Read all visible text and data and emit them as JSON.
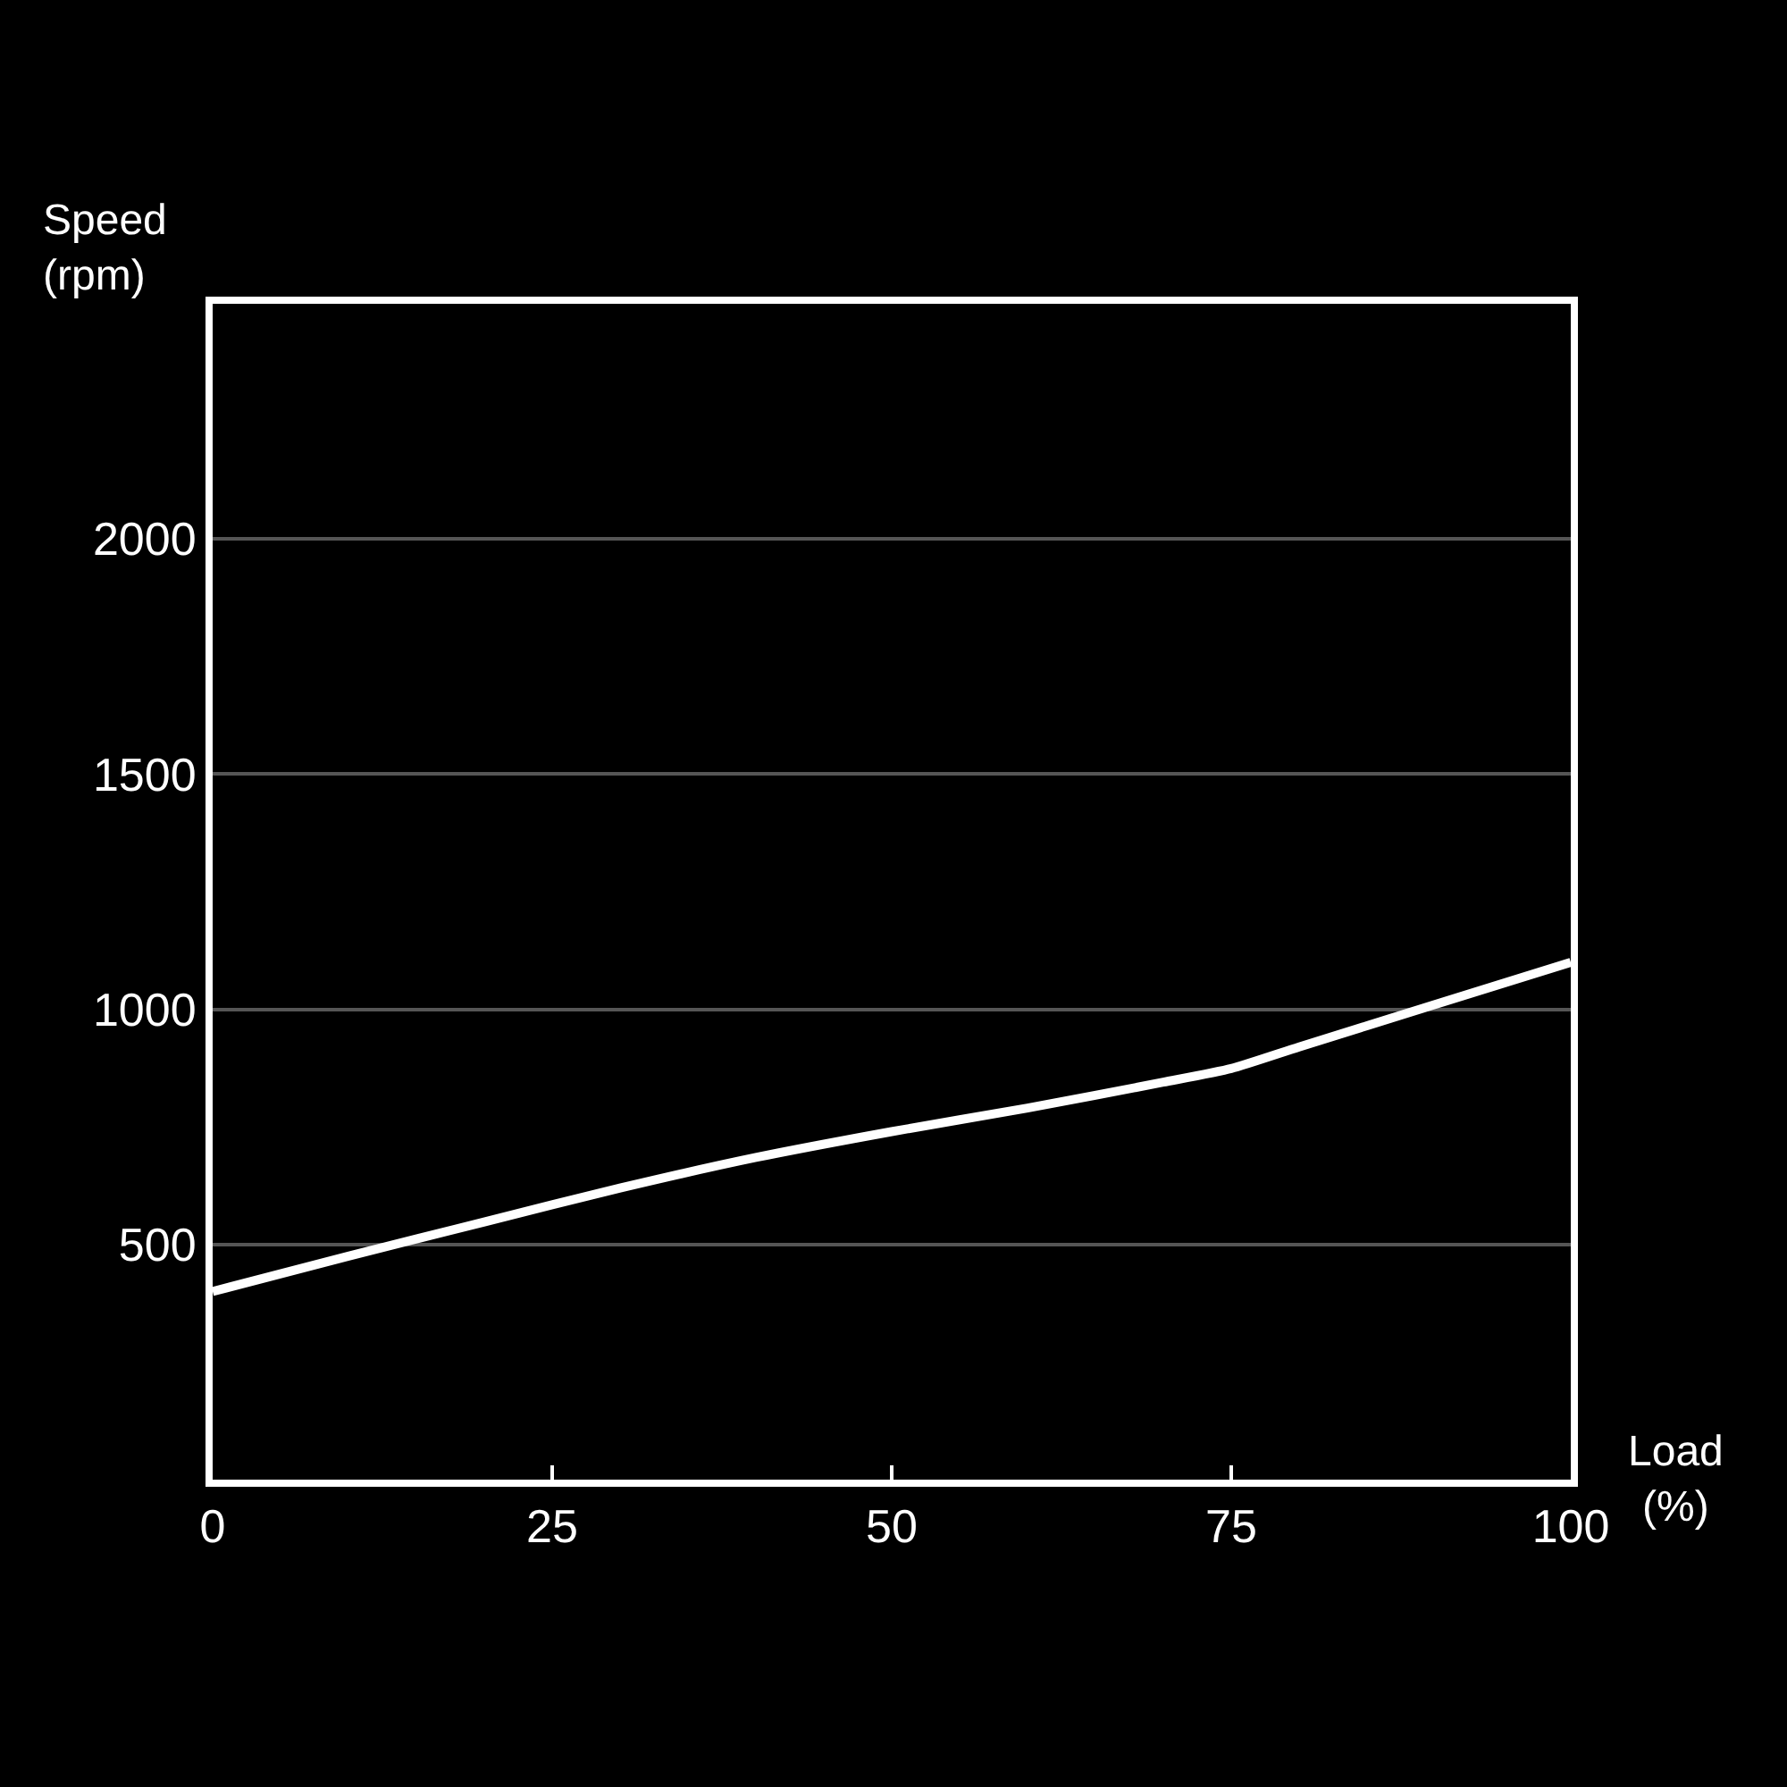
{
  "chart_data": {
    "type": "line",
    "xlabel": "Load (%)",
    "ylabel": "Speed (rpm)",
    "x": [
      0,
      10,
      20,
      30,
      40,
      50,
      60,
      70,
      75,
      80,
      90,
      100
    ],
    "series": [
      {
        "color": "#ffffff",
        "values": [
          400,
          475,
          548,
          620,
          685,
          740,
          790,
          845,
          874,
          920,
          1010,
          1100
        ]
      }
    ],
    "xlim": [
      0,
      100
    ],
    "ylim": [
      0,
      2500
    ],
    "xticks": [
      0,
      25,
      50,
      75,
      100
    ],
    "yticks": [
      500,
      1000,
      1500,
      2000
    ],
    "grid": "y",
    "marker": "none",
    "line_style": "solid"
  }
}
